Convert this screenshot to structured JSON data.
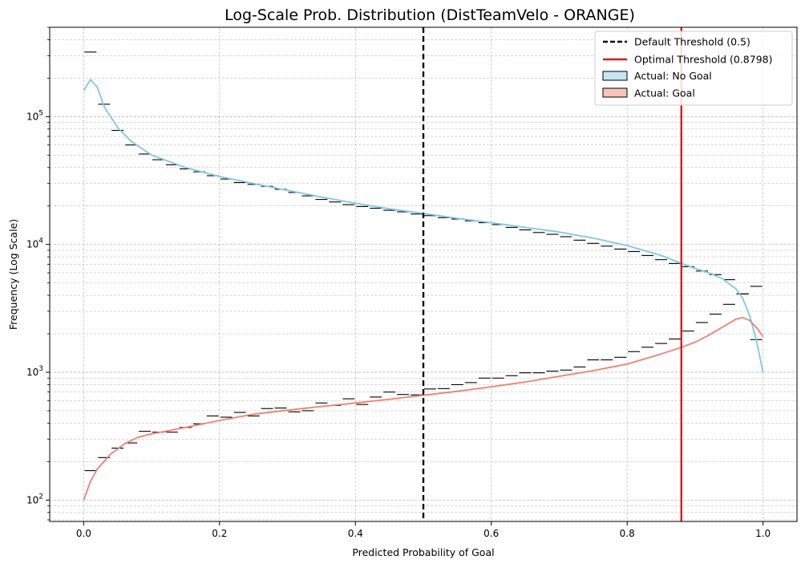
{
  "chart_data": {
    "type": "histogram",
    "title": "Log-Scale Prob. Distribution (DistTeamVelo - ORANGE)",
    "xlabel": "Predicted Probability of Goal",
    "ylabel": "Frequency (Log Scale)",
    "x_scale": "linear",
    "y_scale": "log",
    "xlim": [
      -0.05,
      1.05
    ],
    "ylim": [
      68,
      500000
    ],
    "x_ticks": [
      {
        "value": 0.0,
        "label": "0.0"
      },
      {
        "value": 0.2,
        "label": "0.2"
      },
      {
        "value": 0.4,
        "label": "0.4"
      },
      {
        "value": 0.6,
        "label": "0.6"
      },
      {
        "value": 0.8,
        "label": "0.8"
      },
      {
        "value": 1.0,
        "label": "1.0"
      }
    ],
    "y_ticks": [
      {
        "value": 100,
        "base": "10",
        "exp": "2"
      },
      {
        "value": 1000,
        "base": "10",
        "exp": "3"
      },
      {
        "value": 10000,
        "base": "10",
        "exp": "4"
      },
      {
        "value": 100000,
        "base": "10",
        "exp": "5"
      }
    ],
    "grid": true,
    "legend_position": "top-right",
    "thresholds": [
      {
        "name": "Default Threshold (0.5)",
        "value": 0.5,
        "color": "#000000",
        "style": "dashed"
      },
      {
        "name": "Optimal Threshold (0.8798)",
        "value": 0.8798,
        "color": "#ee1111",
        "style": "solid"
      }
    ],
    "series": [
      {
        "name": "Actual: No Goal",
        "fill": "#c6e6f2",
        "line": "#7fc8e0",
        "bin_width": 0.02,
        "bin_values": [
          320000,
          125000,
          78000,
          60000,
          51000,
          46000,
          42000,
          39000,
          37000,
          34500,
          32500,
          30500,
          29500,
          28500,
          27000,
          25500,
          24000,
          22500,
          21500,
          20500,
          19800,
          19200,
          18500,
          18000,
          17300,
          16800,
          16200,
          15800,
          15300,
          14800,
          14300,
          13600,
          13000,
          12400,
          12000,
          11500,
          10800,
          10200,
          9700,
          9200,
          8800,
          8200,
          7600,
          7100,
          6700,
          6200,
          5800,
          5300,
          4100,
          4700
        ],
        "kde_x": [
          0.0,
          0.01,
          0.02,
          0.03,
          0.05,
          0.07,
          0.1,
          0.15,
          0.2,
          0.25,
          0.3,
          0.35,
          0.4,
          0.45,
          0.5,
          0.55,
          0.6,
          0.65,
          0.7,
          0.75,
          0.8,
          0.85,
          0.88,
          0.9,
          0.92,
          0.94,
          0.96,
          0.97,
          0.98,
          0.99,
          1.0
        ],
        "kde_y": [
          160000,
          195000,
          170000,
          120000,
          82000,
          64000,
          50000,
          40000,
          34000,
          30000,
          26500,
          23500,
          21000,
          19000,
          17500,
          16000,
          14800,
          13600,
          12500,
          11200,
          9800,
          8200,
          7100,
          6500,
          6000,
          5400,
          4500,
          3800,
          2800,
          1800,
          1000
        ]
      },
      {
        "name": "Actual: Goal",
        "fill": "#f9c4b8",
        "line": "#f08070",
        "bin_width": 0.02,
        "bin_values": [
          170,
          215,
          255,
          280,
          345,
          340,
          340,
          370,
          395,
          455,
          445,
          485,
          455,
          520,
          525,
          490,
          500,
          575,
          550,
          620,
          560,
          640,
          700,
          670,
          665,
          740,
          745,
          800,
          830,
          900,
          900,
          940,
          990,
          990,
          1020,
          1040,
          1100,
          1250,
          1250,
          1310,
          1450,
          1570,
          1680,
          1820,
          2100,
          2450,
          2850,
          3400,
          4100,
          1800
        ],
        "kde_x": [
          0.0,
          0.01,
          0.02,
          0.04,
          0.06,
          0.08,
          0.1,
          0.15,
          0.2,
          0.25,
          0.3,
          0.35,
          0.4,
          0.45,
          0.5,
          0.55,
          0.6,
          0.65,
          0.7,
          0.75,
          0.8,
          0.85,
          0.88,
          0.9,
          0.92,
          0.94,
          0.96,
          0.97,
          0.98,
          0.99,
          1.0
        ],
        "kde_y": [
          100,
          140,
          175,
          230,
          275,
          310,
          330,
          370,
          420,
          470,
          505,
          540,
          575,
          615,
          660,
          710,
          770,
          840,
          930,
          1030,
          1160,
          1390,
          1570,
          1720,
          1950,
          2250,
          2600,
          2680,
          2550,
          2250,
          1900
        ]
      }
    ]
  }
}
